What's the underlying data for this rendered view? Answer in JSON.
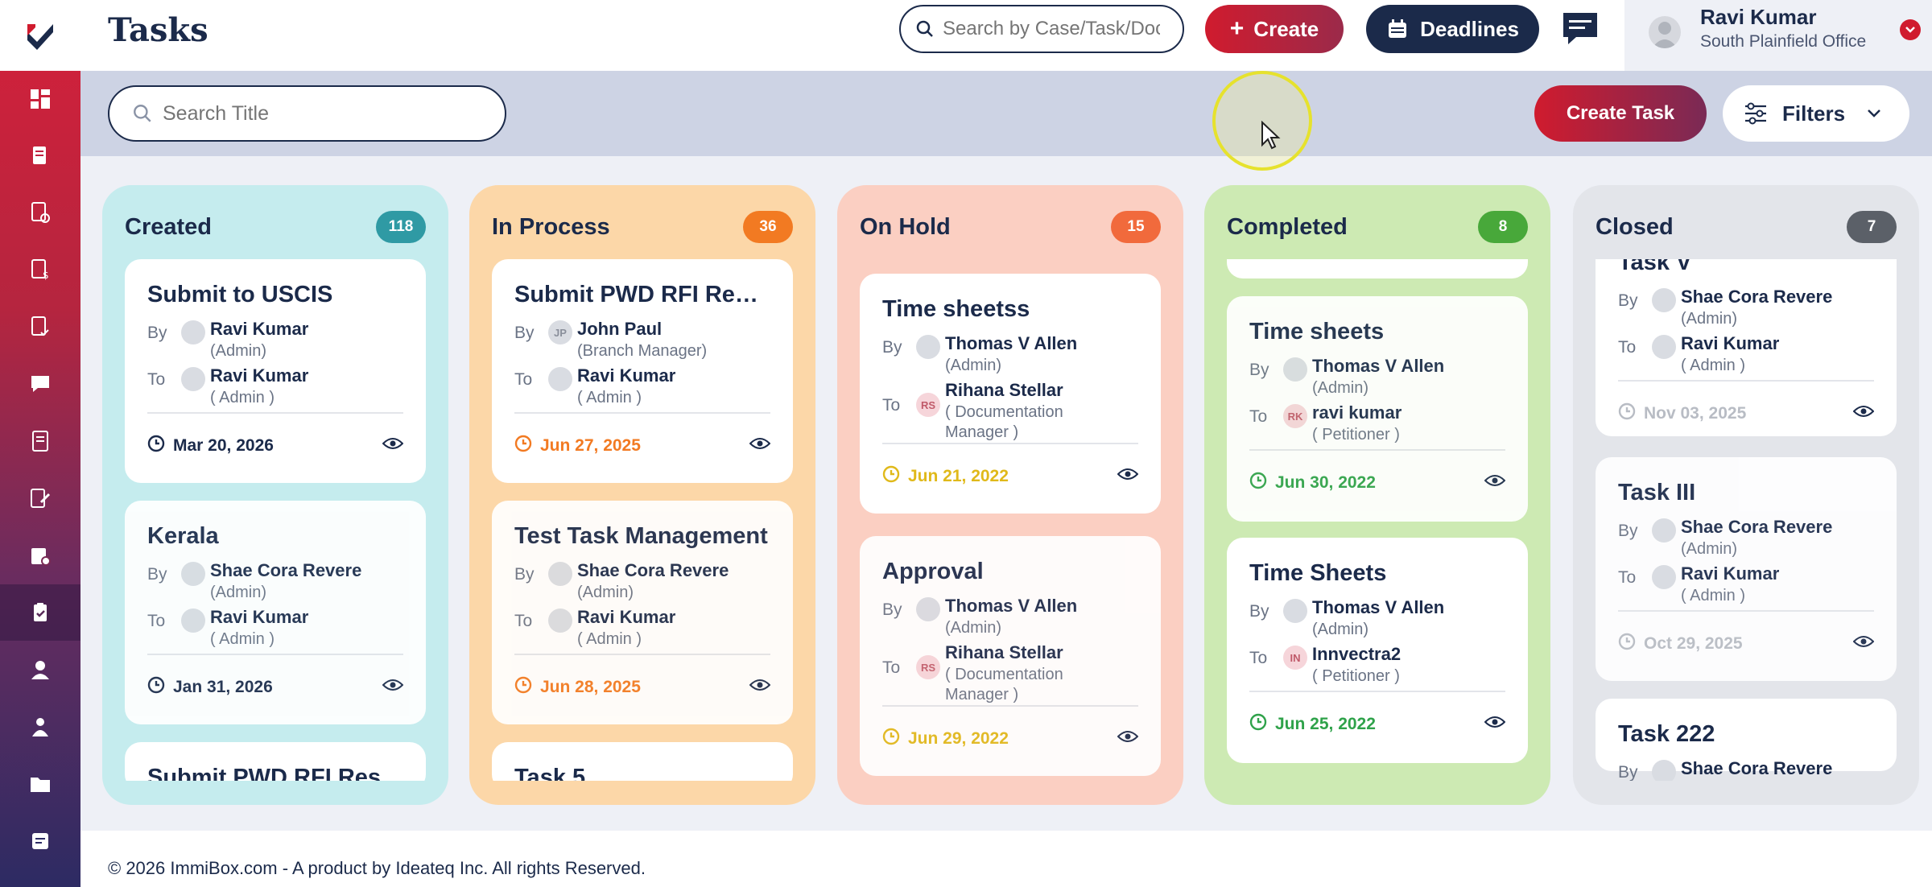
{
  "app": {
    "page_title": "Tasks"
  },
  "topbar": {
    "search_placeholder": "Search by Case/Task/Document",
    "create_label": "Create",
    "deadlines_label": "Deadlines",
    "user_name": "Ravi Kumar",
    "user_office": "South Plainfield Office"
  },
  "subbar": {
    "search_placeholder": "Search Title",
    "create_task_label": "Create Task",
    "filters_label": "Filters"
  },
  "columns": [
    {
      "title": "Created",
      "count": "118",
      "bg": "#c5ecee",
      "badge": "#2f9aa4",
      "cardbg": "#ffffff",
      "datecolor": "#1b2a4a",
      "cards": [
        {
          "title": "Submit to USCIS",
          "by": "Ravi Kumar",
          "by_role": "(Admin)",
          "to": "Ravi Kumar",
          "to_role": "( Admin )",
          "date": "Mar 20, 2026"
        },
        {
          "title": "Kerala",
          "by": "Shae Cora Revere",
          "by_role": "(Admin)",
          "to": "Ravi Kumar",
          "to_role": "( Admin )",
          "date": "Jan 31, 2026"
        },
        {
          "title": "Submit PWD RFI Res"
        }
      ]
    },
    {
      "title": "In Process",
      "count": "36",
      "bg": "#fcd7a8",
      "badge": "#f27a22",
      "cardbg": "#ffffff",
      "datecolor": "#f27a22",
      "cards": [
        {
          "title": "Submit PWD RFI Response",
          "by": "John Paul",
          "by_initials": "JP",
          "by_role": "(Branch Manager)",
          "to": "Ravi Kumar",
          "to_role": "( Admin )",
          "date": "Jun 27, 2025"
        },
        {
          "title": "Test Task Management",
          "by": "Shae Cora Revere",
          "by_role": "(Admin)",
          "to": "Ravi Kumar",
          "to_role": "( Admin )",
          "date": "Jun 28, 2025"
        },
        {
          "title": "Task 5"
        }
      ]
    },
    {
      "title": "On Hold",
      "count": "15",
      "bg": "#fbcfc2",
      "badge": "#f16a3c",
      "cardbg": "#ffffff",
      "datecolor": "#e0b91a",
      "cards": [
        {
          "title": "Time sheetss",
          "by": "Thomas V Allen",
          "by_role": "(Admin)",
          "to": "Rihana Stellar",
          "to_initials": "RS",
          "to_role": "( Documentation",
          "to_role2": "Manager )",
          "date": "Jun 21, 2022"
        },
        {
          "title": "Approval",
          "by": "Thomas V Allen",
          "by_role": "(Admin)",
          "to": "Rihana Stellar",
          "to_initials": "RS",
          "to_role": "( Documentation",
          "to_role2": "Manager )",
          "date": "Jun 29, 2022"
        }
      ]
    },
    {
      "title": "Completed",
      "count": "8",
      "bg": "#cdeab3",
      "badge": "#48a83a",
      "cardbg": "#ffffff",
      "datecolor": "#2fa24a",
      "cards": [
        {
          "title": "",
          "date": "Jun 30, 2022"
        },
        {
          "title": "Time sheets",
          "by": "Thomas V Allen",
          "by_role": "(Admin)",
          "to": "ravi kumar",
          "to_initials": "RK",
          "to_role": "( Petitioner )",
          "date": "Jun 30, 2022"
        },
        {
          "title": "Time Sheets",
          "by": "Thomas V Allen",
          "by_role": "(Admin)",
          "to": "Innvectra2",
          "to_initials": "IN",
          "to_role": "( Petitioner )",
          "date": "Jun 25, 2022"
        }
      ]
    },
    {
      "title": "Closed",
      "count": "7",
      "bg": "#e3e5ea",
      "badge": "#5b6068",
      "cardbg": "#ffffff",
      "datecolor": "#b8bcc4",
      "cards": [
        {
          "title": "Task V",
          "by": "Shae Cora Revere",
          "by_role": "(Admin)",
          "to": "Ravi Kumar",
          "to_role": "( Admin )",
          "date": "Nov 03, 2025"
        },
        {
          "title": "Task III",
          "by": "Shae Cora Revere",
          "by_role": "(Admin)",
          "to": "Ravi Kumar",
          "to_role": "( Admin )",
          "date": "Oct 29, 2025"
        },
        {
          "title": "Task 222",
          "by": "Shae Cora Revere"
        }
      ]
    }
  ],
  "labels": {
    "by": "By",
    "to": "To"
  },
  "footer": {
    "text": "© 2026 ImmiBox.com - A product by Ideateq Inc. All rights Reserved."
  }
}
